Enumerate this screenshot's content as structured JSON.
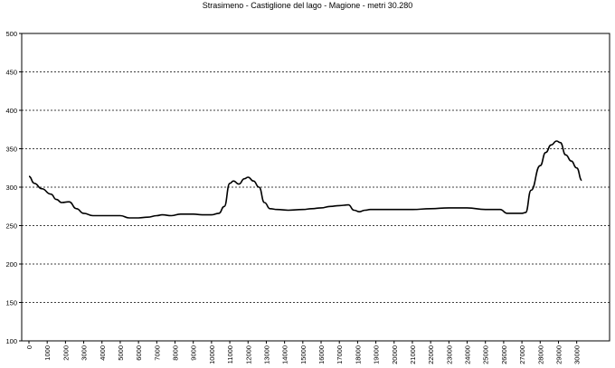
{
  "chart_data": {
    "type": "line",
    "title": "Strasimeno - Castiglione del lago - Magione - metri 30.280",
    "xlabel": "",
    "ylabel": "",
    "xlim": [
      0,
      30280
    ],
    "ylim": [
      100,
      500
    ],
    "grid": true,
    "grid_style": "dashed horizontal",
    "line_color": "#000000",
    "y_ticks": [
      "100",
      "150",
      "200",
      "250",
      "300",
      "350",
      "400",
      "450",
      "500"
    ],
    "x_ticks": [
      "0",
      "1000",
      "2000",
      "3000",
      "4000",
      "5000",
      "6000",
      "7000",
      "8000",
      "9000",
      "10000",
      "11000",
      "12000",
      "13000",
      "14000",
      "15000",
      "16000",
      "17000",
      "18000",
      "19000",
      "20000",
      "21000",
      "22000",
      "23000",
      "24000",
      "25000",
      "26000",
      "27000",
      "28000",
      "29000",
      "30000"
    ],
    "series": [
      {
        "x": [
          0,
          300,
          700,
          1200,
          1500,
          1800,
          2200,
          2600,
          3000,
          3500,
          4000,
          5000,
          5500,
          6000,
          6500,
          7000,
          7300,
          7800,
          8300,
          9000,
          9500,
          10000,
          10400,
          10700,
          11000,
          11200,
          11500,
          11800,
          12000,
          12300,
          12600,
          12900,
          13200,
          13600,
          14200,
          15000,
          15500,
          16000,
          16500,
          17000,
          17500,
          17800,
          18100,
          18400,
          18700,
          19000,
          20000,
          21000,
          22000,
          23000,
          24000,
          25000,
          25800,
          26200,
          26600,
          27000,
          27200,
          27500,
          28000,
          28300,
          28600,
          28900,
          29100,
          29400,
          29700,
          30000,
          30280
        ],
        "y": [
          314,
          305,
          298,
          291,
          284,
          280,
          281,
          272,
          266,
          263,
          263,
          263,
          260,
          260,
          261,
          263,
          264,
          263,
          265,
          265,
          264,
          264,
          266,
          275,
          305,
          308,
          304,
          311,
          313,
          308,
          300,
          280,
          272,
          271,
          270,
          271,
          272,
          273,
          275,
          276,
          277,
          270,
          268,
          270,
          271,
          271,
          271,
          271,
          272,
          273,
          273,
          271,
          271,
          266,
          266,
          266,
          267,
          296,
          328,
          345,
          355,
          360,
          358,
          342,
          334,
          325,
          309
        ]
      }
    ]
  }
}
